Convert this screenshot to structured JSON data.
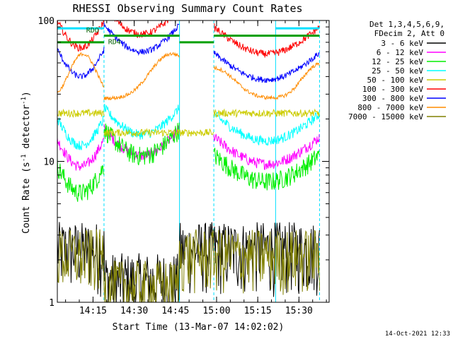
{
  "chart_data": {
    "type": "line",
    "title": "RHESSI Observing Summary Count Rates",
    "xlabel": "Start Time (13-Mar-07 14:02:02)",
    "ylabel": "Count Rate (s",
    "ylabel_sup": "-1",
    "ylabel_tail": " detector",
    "ylabel_sup2": "-1",
    "ylabel_close": ")",
    "yscale": "log",
    "ylim": [
      1,
      100
    ],
    "xlim_minutes": [
      0,
      99
    ],
    "x_ticks": [
      {
        "label": "14:15",
        "m": 13
      },
      {
        "label": "14:30",
        "m": 28
      },
      {
        "label": "14:45",
        "m": 43
      },
      {
        "label": "15:00",
        "m": 58
      },
      {
        "label": "15:15",
        "m": 73
      },
      {
        "label": "15:30",
        "m": 88
      }
    ],
    "y_ticks": [
      {
        "label": "1",
        "v": 1
      },
      {
        "label": "10",
        "v": 10
      },
      {
        "label": "100",
        "v": 100
      }
    ],
    "legend_header": [
      "Det 1,3,4,5,6,9,",
      "FDecim 2, Att 0"
    ],
    "legend_position": "right",
    "timestamp": "14-Oct-2021 12:33",
    "annotations": [
      {
        "text": "RDO",
        "m": 10.5,
        "v": 82
      },
      {
        "text": "RD4",
        "m": 18.5,
        "v": 68
      }
    ],
    "orbit_boundaries_minutes": [
      0,
      17,
      44.5,
      57,
      79.5,
      95.5
    ],
    "flag_bars": [
      {
        "color": "#00e0ff",
        "v": 88,
        "segments": [
          [
            0,
            17
          ],
          [
            79.5,
            95.5
          ]
        ]
      },
      {
        "color": "#00a000",
        "v": 78,
        "segments": [
          [
            17,
            44.5
          ],
          [
            57,
            95.5
          ]
        ]
      },
      {
        "color": "#00a000",
        "v": 70,
        "segments": [
          [
            0,
            17
          ],
          [
            44.5,
            57
          ]
        ]
      }
    ],
    "series": [
      {
        "name": "3 - 6 keV",
        "color": "#000000",
        "kind": "low",
        "base": 2.4,
        "noise": 0.55
      },
      {
        "name": "6 - 12 keV",
        "color": "#ff00ff",
        "kind": "curve",
        "day": [
          9.2,
          11,
          9.6
        ],
        "noise": 0.09
      },
      {
        "name": "12 - 25 keV",
        "color": "#00ee00",
        "kind": "curve",
        "day": [
          6.0,
          11,
          7.2
        ],
        "noise": 0.16
      },
      {
        "name": "25 - 50 keV",
        "color": "#00ffff",
        "kind": "curve",
        "day": [
          13.0,
          15.5,
          14.0
        ],
        "noise": 0.08
      },
      {
        "name": "50 - 100 keV",
        "color": "#cccc00",
        "kind": "step",
        "levels": [
          22,
          16,
          16,
          22
        ],
        "noise": 0.06
      },
      {
        "name": "100 - 300 keV",
        "color": "#ff0000",
        "kind": "curve",
        "day": [
          64,
          80,
          58
        ],
        "noise": 0.06
      },
      {
        "name": "300 - 800 keV",
        "color": "#0000ff",
        "kind": "curve",
        "day": [
          40,
          60,
          38
        ],
        "noise": 0.05
      },
      {
        "name": "800 - 7000 keV",
        "color": "#ff8c00",
        "kind": "hump",
        "peak": 58,
        "low": 28,
        "noise": 0.03
      },
      {
        "name": "7000 - 15000 keV",
        "color": "#808000",
        "kind": "low",
        "base": 2.2,
        "noise": 0.5
      }
    ]
  }
}
